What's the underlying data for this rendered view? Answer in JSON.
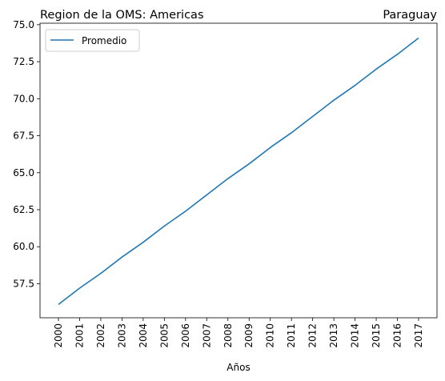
{
  "chart_data": {
    "type": "line",
    "title_left": "Region de la OMS: Americas",
    "title_right": "Paraguay",
    "xlabel": "Años",
    "ylabel": "",
    "x": [
      "2000",
      "2001",
      "2002",
      "2003",
      "2004",
      "2005",
      "2006",
      "2007",
      "2008",
      "2009",
      "2010",
      "2011",
      "2012",
      "2013",
      "2014",
      "2015",
      "2016",
      "2017"
    ],
    "series": [
      {
        "name": "Promedio",
        "color": "#1f77b4",
        "values": [
          56.1,
          57.2,
          58.2,
          59.3,
          60.3,
          61.4,
          62.4,
          63.5,
          64.6,
          65.6,
          66.7,
          67.7,
          68.8,
          69.9,
          70.9,
          72.0,
          73.0,
          74.1
        ]
      }
    ],
    "yticks": [
      "57.5",
      "60.0",
      "62.5",
      "65.0",
      "67.5",
      "70.0",
      "72.5",
      "75.0"
    ],
    "ylim": [
      55.2,
      75.1
    ],
    "legend": "top-left",
    "grid": false
  }
}
